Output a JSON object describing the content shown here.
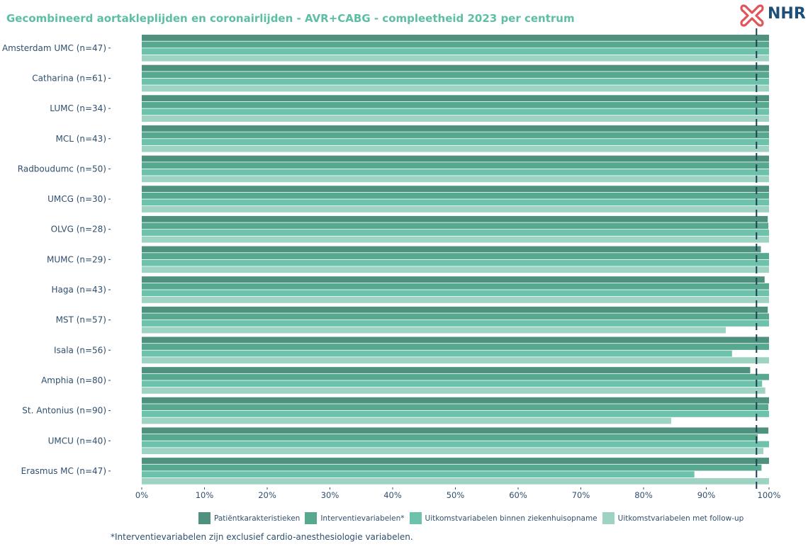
{
  "header": {
    "title": "Gecombineerd aortakleplijden en coronairlijden - AVR+CABG - compleetheid 2023 per centrum",
    "logo_text": "NHR"
  },
  "footnote": "*Interventievariabelen zijn exclusief cardio-anesthesiologie variabelen.",
  "chart_data": {
    "type": "bar",
    "orientation": "horizontal",
    "title": "Gecombineerd aortakleplijden en coronairlijden - AVR+CABG - compleetheid 2023 per centrum",
    "categories": [
      "Amsterdam UMC (n=47)",
      "Catharina (n=61)",
      "LUMC (n=34)",
      "MCL (n=43)",
      "Radboudumc (n=50)",
      "UMCG (n=30)",
      "OLVG (n=28)",
      "MUMC (n=29)",
      "Haga (n=43)",
      "MST (n=57)",
      "Isala (n=56)",
      "Amphia (n=80)",
      "St. Antonius (n=90)",
      "UMCU (n=40)",
      "Erasmus MC (n=47)"
    ],
    "series": [
      {
        "name": "Patiëntkarakteristieken",
        "color": "#4e917e",
        "values": [
          100,
          100,
          100,
          100,
          100,
          100,
          99.8,
          98.7,
          99.3,
          99.8,
          100,
          97.0,
          100,
          99.9,
          100
        ]
      },
      {
        "name": "Interventievariabelen*",
        "color": "#56a88f",
        "values": [
          100,
          100,
          100,
          100,
          100,
          100,
          99.9,
          100,
          100,
          100,
          100,
          100,
          99.9,
          98.2,
          98.8
        ]
      },
      {
        "name": "Uitkomstvariabelen binnen ziekenhuisopname",
        "color": "#6cc2ab",
        "values": [
          100,
          100,
          100,
          100,
          100,
          100,
          100,
          100,
          100,
          100,
          94.1,
          98.9,
          100,
          100,
          88.1
        ]
      },
      {
        "name": "Uitkomstvariabelen met follow-up",
        "color": "#9ed2c2",
        "values": [
          100,
          100,
          100,
          100,
          100,
          100,
          100,
          100,
          100,
          93.1,
          100,
          99.4,
          84.4,
          99.1,
          100
        ]
      }
    ],
    "x_ticks": [
      "0%",
      "10%",
      "20%",
      "30%",
      "40%",
      "50%",
      "60%",
      "70%",
      "80%",
      "90%",
      "100%"
    ],
    "xlim": [
      0,
      100
    ],
    "reference_line": 98,
    "legend_position": "bottom",
    "grid": false
  }
}
